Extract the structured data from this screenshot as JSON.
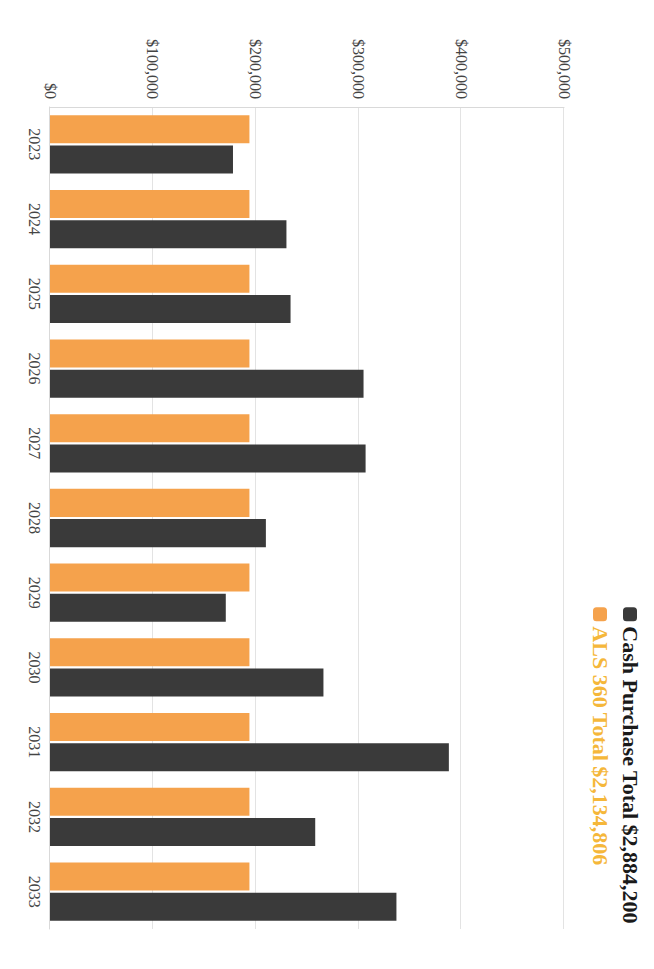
{
  "chart_data": {
    "type": "bar",
    "categories": [
      "2023",
      "2024",
      "2025",
      "2026",
      "2027",
      "2028",
      "2029",
      "2030",
      "2031",
      "2032",
      "2033"
    ],
    "series": [
      {
        "name": "ALS 360 Total $2,134,806",
        "color": "#f5a24c",
        "values": [
          194000,
          194000,
          194000,
          194000,
          194000,
          194000,
          194000,
          194000,
          194000,
          194000,
          194000
        ]
      },
      {
        "name": "Cash Purchase Total $2,884,200",
        "color": "#3a3a3a",
        "values": [
          178000,
          230000,
          234000,
          305000,
          307000,
          210000,
          171000,
          266000,
          388000,
          258000,
          337000
        ]
      }
    ],
    "ylim": [
      0,
      500000
    ],
    "yticks": [
      {
        "value": 0,
        "label": "$0"
      },
      {
        "value": 100000,
        "label": "$100,000"
      },
      {
        "value": 200000,
        "label": "$200,000"
      },
      {
        "value": 300000,
        "label": "$300,000"
      },
      {
        "value": 400000,
        "label": "$400,000"
      },
      {
        "value": 500000,
        "label": "$500,000"
      }
    ],
    "grid": true,
    "legend": "top-right"
  }
}
